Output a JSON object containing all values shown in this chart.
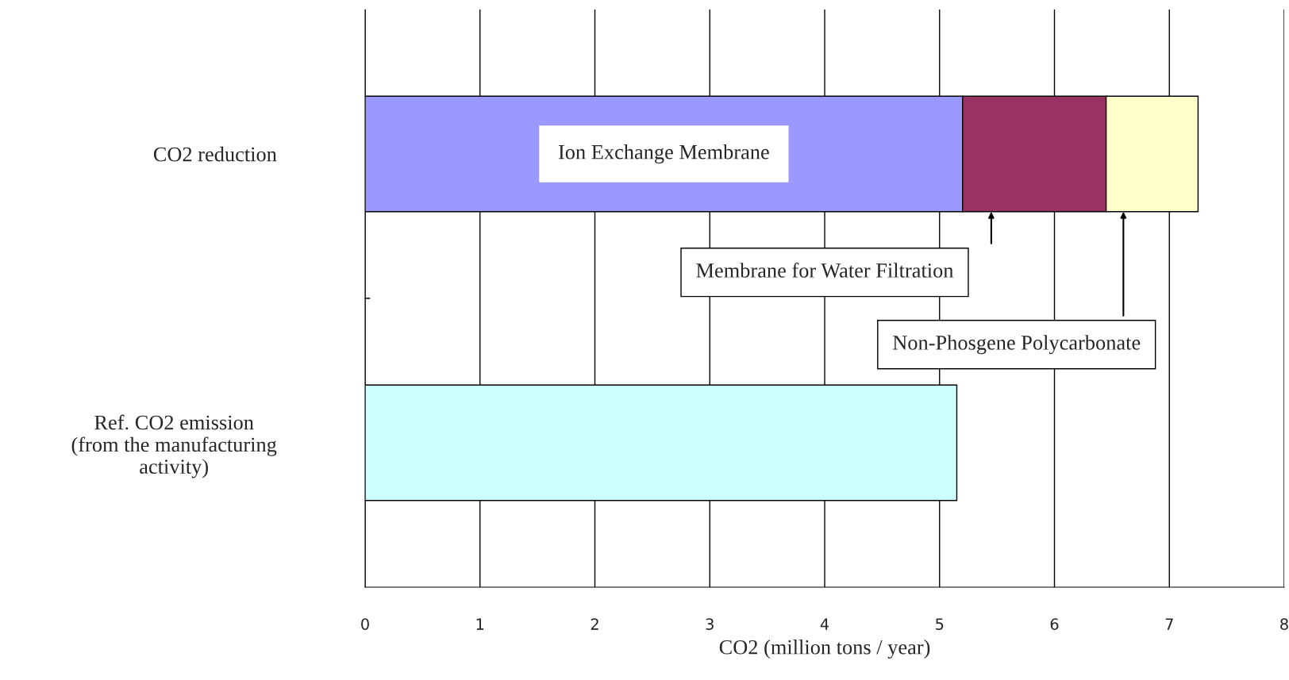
{
  "chart_data": {
    "type": "bar",
    "orientation": "horizontal",
    "stacked": true,
    "xlabel": "CO2 (million tons / year)",
    "categories": [
      "CO2 reduction",
      "Ref. CO2 emission\n(from the manufacturing\nactivity)"
    ],
    "series": [
      {
        "name": "Ion Exchange Membrane",
        "color": "#9999ff",
        "values": [
          5.2,
          null
        ]
      },
      {
        "name": "Membrane for Water Filtration",
        "color": "#993366",
        "values": [
          1.25,
          null
        ]
      },
      {
        "name": "Non-Phosgene Polycarbonate",
        "color": "#ffffcc",
        "values": [
          0.8,
          null
        ]
      },
      {
        "color": "#ccffff",
        "values": [
          null,
          5.15
        ]
      }
    ],
    "xlim": [
      0,
      8
    ],
    "xticks": [
      0,
      1,
      2,
      3,
      4,
      5,
      6,
      7,
      8
    ],
    "grid": "x",
    "legend": false
  }
}
